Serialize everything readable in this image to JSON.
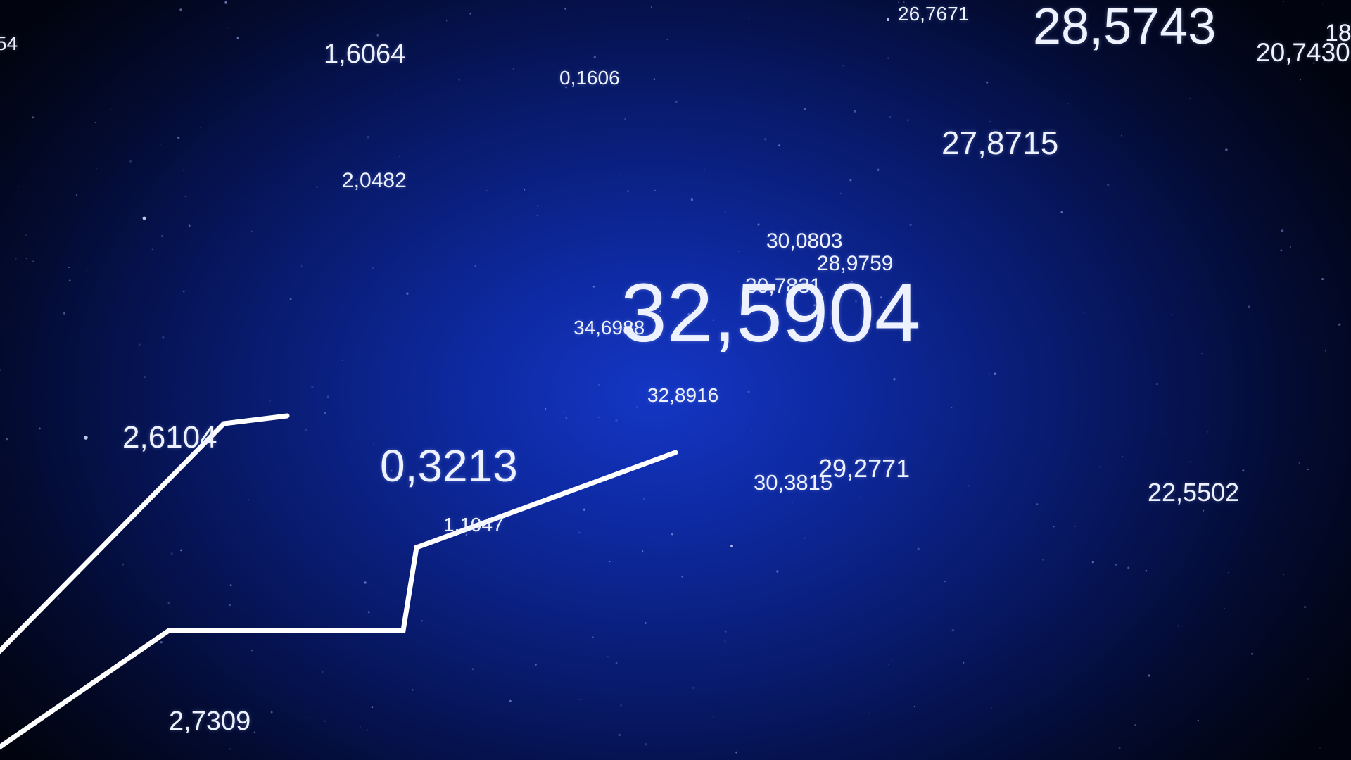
{
  "background": {
    "center_color": "#1436c4",
    "edge_color": "#01040f",
    "line_color": "#ffffff"
  },
  "numbers": {
    "n01": "28,5743",
    "n02": "26,7671",
    "n03": "20,7430",
    "n04": "18",
    "n05": "54",
    "n06": "1,6064",
    "n07": "0,1606",
    "n08": "27,8715",
    "n09": "2,0482",
    "n10": "30,0803",
    "n11": "28,9759",
    "n12": "30,7831",
    "n13": "32,5904",
    "n14": "34,6988",
    "n15": "32,8916",
    "n16": "2,6104",
    "n17": "0,3213",
    "n18": "29,2771",
    "n19": "30,3815",
    "n20": "22,5502",
    "n21": "1,1047",
    "n22": "2,7309"
  }
}
